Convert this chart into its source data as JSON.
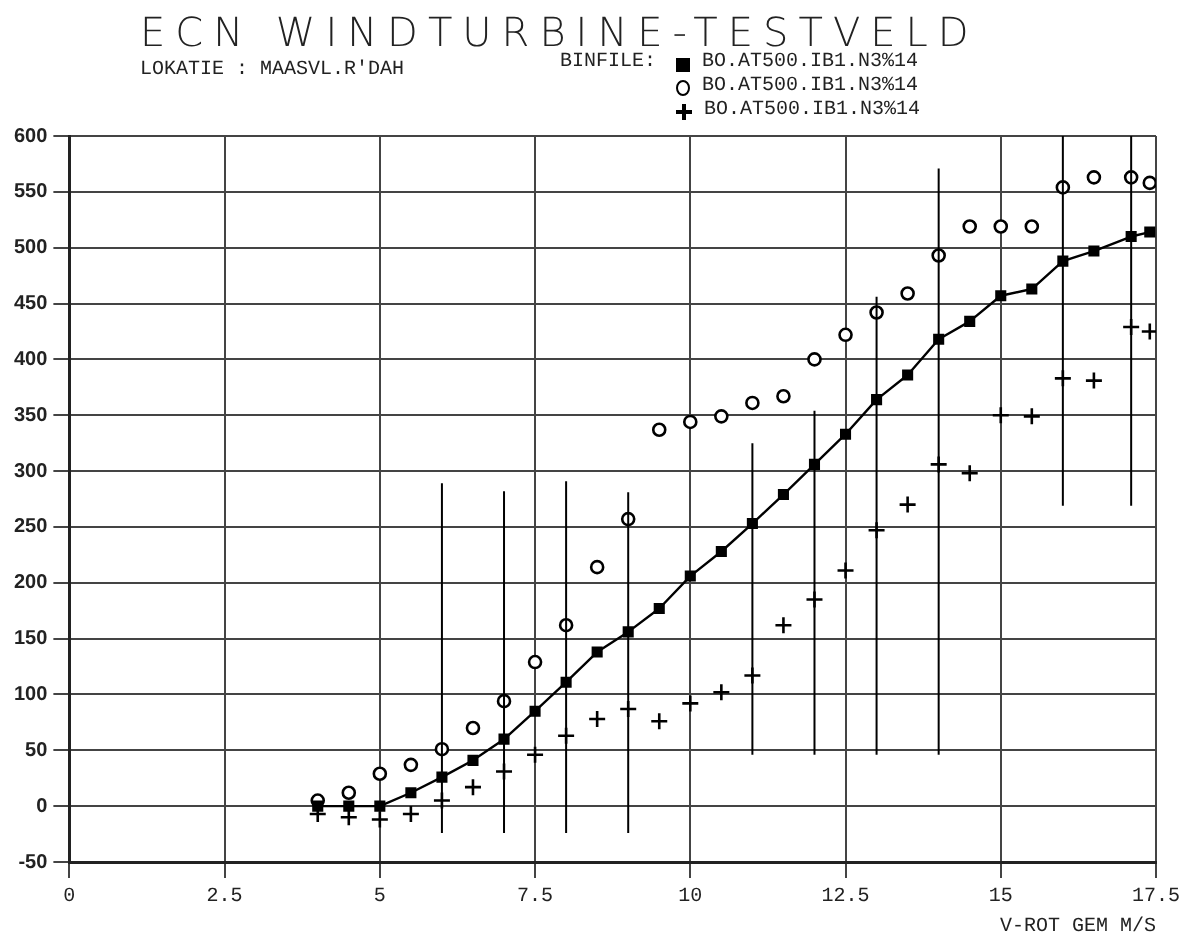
{
  "chart_data": {
    "type": "scatter",
    "title": "ECN WINDTURBINE-TESTVELD",
    "annotations": [
      "LOKATIE  : MAASVL.R'DAH"
    ],
    "legend_title": "BINFILE:",
    "xlabel": "V-ROT GEM M/S",
    "xlim": [
      0,
      17.5
    ],
    "xticks": [
      0,
      2.5,
      5,
      7.5,
      10,
      12.5,
      15,
      17.5
    ],
    "ylim": [
      -50,
      600
    ],
    "yticks": [
      -50,
      0,
      50,
      100,
      150,
      200,
      250,
      300,
      350,
      400,
      450,
      500,
      550,
      600
    ],
    "grid": true,
    "legend": "top right",
    "x": [
      4,
      4.5,
      5,
      5.5,
      6,
      6.5,
      7,
      7.5,
      8,
      8.5,
      9,
      9.5,
      10,
      10.5,
      11,
      11.5,
      12,
      12.5,
      13,
      13.5,
      14,
      14.5,
      15,
      15.5,
      16,
      16.5,
      17.1,
      17.4
    ],
    "series": [
      {
        "name": "BO.AT500.IB1.N3%14",
        "type": "line",
        "marker": "square",
        "color": "#000000",
        "values": [
          0,
          0,
          0,
          12,
          26,
          41,
          60,
          85,
          111,
          138,
          156,
          177,
          206,
          228,
          253,
          279,
          306,
          333,
          364,
          386,
          418,
          434,
          457,
          463,
          488,
          497,
          510,
          514
        ],
        "errors": [
          null,
          null,
          null,
          null,
          [
            -24,
            289
          ],
          null,
          [
            -24,
            282
          ],
          null,
          [
            -24,
            291
          ],
          null,
          [
            -24,
            281
          ],
          null,
          null,
          null,
          [
            46,
            325
          ],
          null,
          [
            46,
            354
          ],
          null,
          [
            46,
            456
          ],
          null,
          [
            46,
            571
          ],
          null,
          null,
          null,
          [
            269,
            600
          ],
          null,
          [
            269,
            600
          ],
          null
        ]
      },
      {
        "name": "BO.AT500.IB1.N3%14",
        "marker": "circle",
        "color": "#000000",
        "values": [
          5,
          12,
          29,
          37,
          51,
          70,
          94,
          129,
          162,
          214,
          257,
          337,
          344,
          349,
          361,
          367,
          400,
          422,
          442,
          459,
          493,
          519,
          519,
          519,
          554,
          563,
          563,
          558
        ]
      },
      {
        "name": "BO.AT500.IB1.N3%14",
        "marker": "cross",
        "color": "#000000",
        "values": [
          -7,
          -10,
          -12,
          -7,
          5,
          17,
          31,
          46,
          63,
          78,
          87,
          76,
          92,
          102,
          117,
          162,
          185,
          211,
          247,
          270,
          306,
          298,
          350,
          349,
          383,
          381,
          429,
          425
        ]
      }
    ]
  }
}
